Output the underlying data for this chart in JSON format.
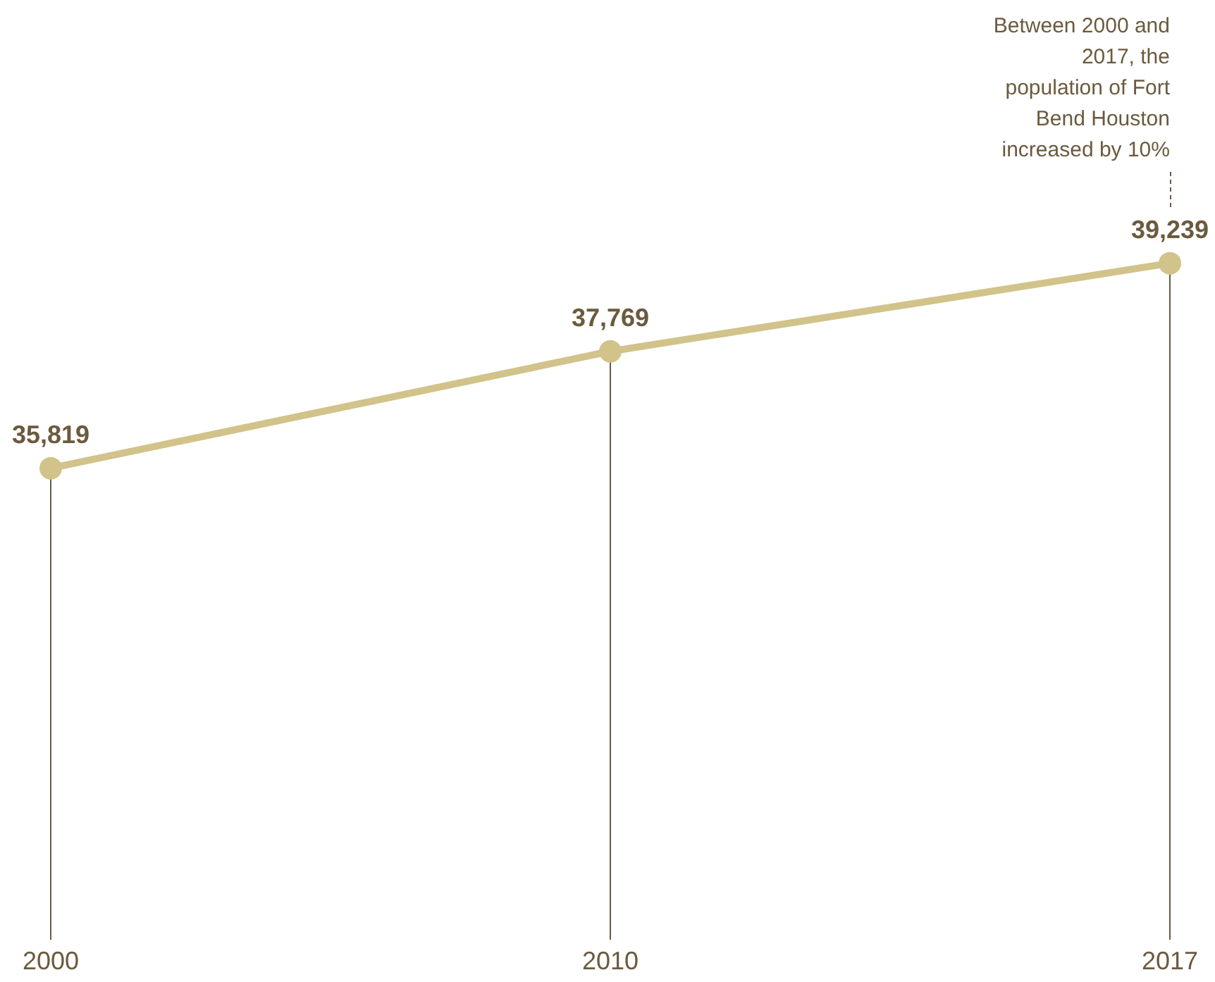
{
  "chart_data": {
    "type": "line",
    "categories": [
      "2000",
      "2010",
      "2017"
    ],
    "series": [
      {
        "color": "#d1c38a",
        "values": [
          35819,
          37769,
          39239
        ],
        "value_labels": [
          "35,819",
          "37,769",
          "39,239"
        ]
      }
    ],
    "marker": "circle",
    "annotations": [
      "Between 2000 and 2017, the population of Fort Bend Houston increased by 10%"
    ]
  }
}
